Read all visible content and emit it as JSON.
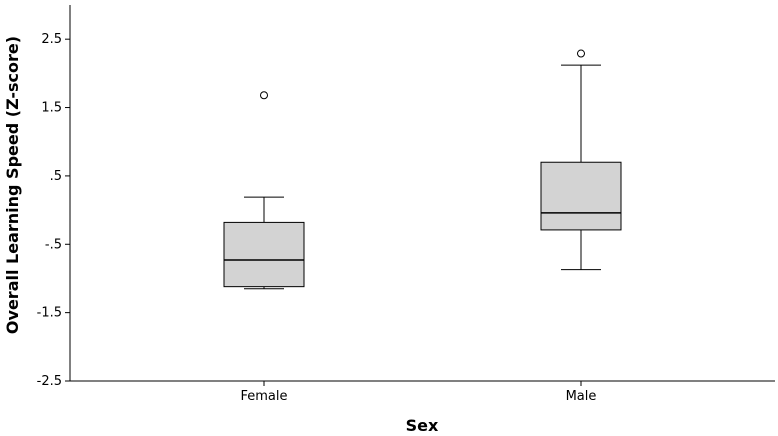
{
  "chart_data": {
    "type": "boxplot",
    "xlabel": "Sex",
    "ylabel": "Overall Learning Speed (Z-score)",
    "ylim": [
      -2.5,
      3.0
    ],
    "yticks": [
      {
        "value": 2.5,
        "label": "2.5"
      },
      {
        "value": 1.5,
        "label": "1.5"
      },
      {
        "value": 0.5,
        "label": ".5"
      },
      {
        "value": -0.5,
        "label": "-.5"
      },
      {
        "value": -1.5,
        "label": "-1.5"
      },
      {
        "value": -2.5,
        "label": "-2.5"
      }
    ],
    "categories": [
      "Female",
      "Male"
    ],
    "boxes": [
      {
        "category": "Female",
        "whisker_low": -1.15,
        "q1": -1.12,
        "median": -0.73,
        "q3": -0.18,
        "whisker_high": 0.19,
        "outliers": [
          1.68
        ]
      },
      {
        "category": "Male",
        "whisker_low": -0.87,
        "q1": -0.29,
        "median": -0.04,
        "q3": 0.7,
        "whisker_high": 2.12,
        "outliers": [
          2.29
        ]
      }
    ],
    "box_fill": "#d3d3d3",
    "grid": false
  }
}
